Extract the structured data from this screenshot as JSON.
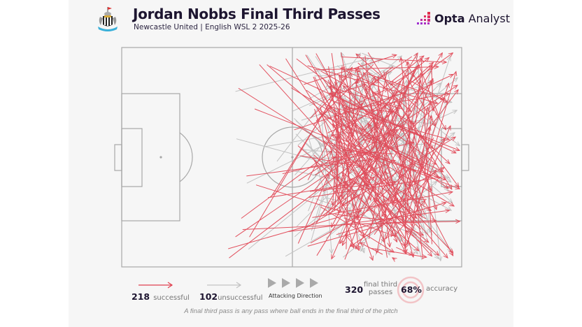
{
  "header": {
    "title": "Jordan Nobbs Final Third Passes",
    "subtitle": "Newcastle United | English WSL 2 2025-26",
    "crest_icon": "newcastle-united-crest-icon",
    "brand_bold": "Opta",
    "brand_light": " Analyst",
    "brand_icon": "opta-bars-icon"
  },
  "colors": {
    "successful": "#e0404f",
    "unsuccessful": "#c2c2c2",
    "pitch_lines": "#9e9e9e",
    "background": "#f6f6f6",
    "title": "#1d1530",
    "accuracy_ring": "#f2c4c7"
  },
  "legend": {
    "successful_count": "218",
    "successful_label": "successful",
    "unsuccessful_count": "102",
    "unsuccessful_label": "unsuccessful",
    "direction_label": "Attacking Direction",
    "total_count": "320",
    "total_label_line1": "final third",
    "total_label_line2": "passes",
    "accuracy_value": "68%",
    "accuracy_label": "accuracy"
  },
  "footnote": "A final third pass is any pass where ball ends in the final third of the pitch",
  "chart_data": {
    "type": "pass-map",
    "title": "Jordan Nobbs Final Third Passes",
    "subtitle": "Newcastle United | English WSL 2 2025-26",
    "attacking_direction": "left-to-right",
    "series": [
      {
        "name": "successful",
        "count": 218,
        "color": "#e0404f"
      },
      {
        "name": "unsuccessful",
        "count": 102,
        "color": "#c2c2c2"
      }
    ],
    "total_passes": 320,
    "accuracy_pct": 68
  }
}
